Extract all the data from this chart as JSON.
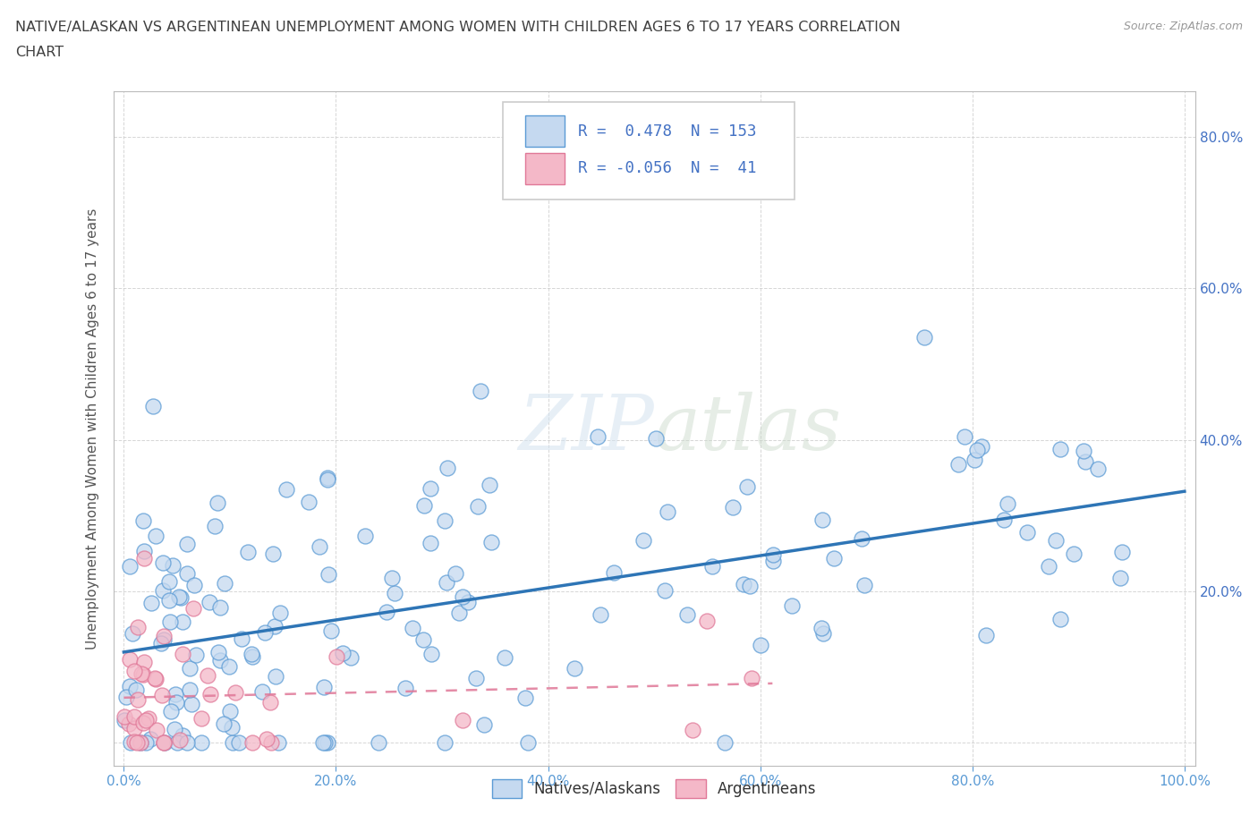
{
  "title_line1": "NATIVE/ALASKAN VS ARGENTINEAN UNEMPLOYMENT AMONG WOMEN WITH CHILDREN AGES 6 TO 17 YEARS CORRELATION",
  "title_line2": "CHART",
  "source_text": "Source: ZipAtlas.com",
  "ylabel": "Unemployment Among Women with Children Ages 6 to 17 years",
  "blue_R": 0.478,
  "blue_N": 153,
  "pink_R": -0.056,
  "pink_N": 41,
  "blue_fill": "#c5d9f0",
  "blue_edge": "#5b9bd5",
  "blue_line": "#2e75b6",
  "pink_fill": "#f4b8c8",
  "pink_edge": "#e07898",
  "pink_line": "#e07898",
  "legend_text_color": "#4472c4",
  "legend_N_color": "#4472c4",
  "watermark_color": "#d0dce8",
  "background_color": "#ffffff",
  "grid_color": "#cccccc",
  "title_color": "#404040",
  "tick_color": "#5b9bd5",
  "right_tick_color": "#4472c4",
  "seed": 7
}
